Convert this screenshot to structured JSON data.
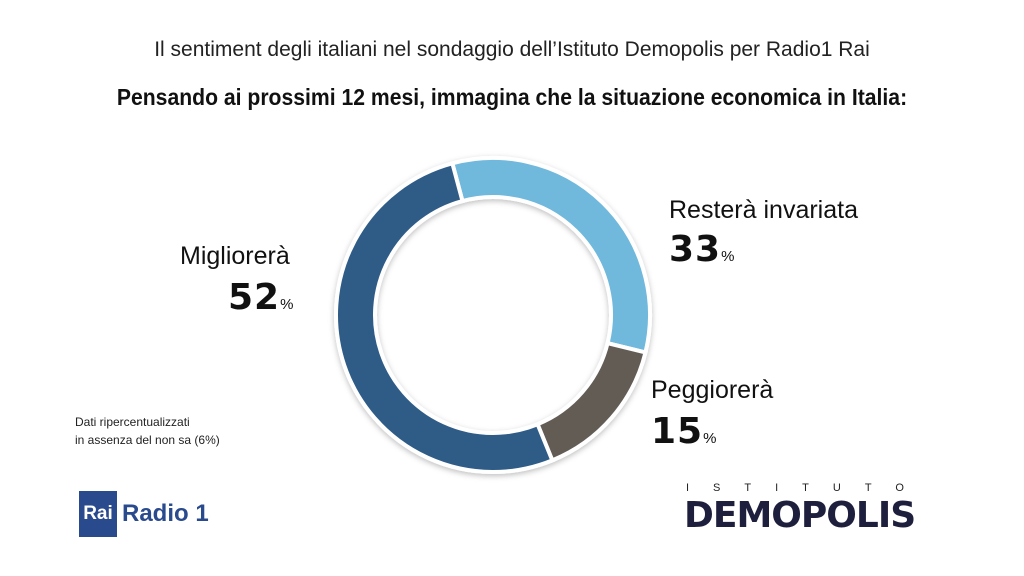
{
  "header": {
    "subtitle": "Il sentiment degli italiani nel sondaggio dell’Istituto Demopolis per Radio1 Rai",
    "title": "Pensando ai prossimi 12 mesi, immagina che la situazione economica in Italia:"
  },
  "chart_data": {
    "type": "pie",
    "variant": "donut",
    "title": "Pensando ai prossimi 12 mesi, immagina che la situazione economica in Italia:",
    "categories": [
      "Resterà invariata",
      "Peggiorerà",
      "Migliorerà"
    ],
    "values": [
      33,
      15,
      52
    ],
    "unit": "%",
    "colors": [
      "#6fb8dc",
      "#625b55",
      "#2f5b87"
    ]
  },
  "labels": {
    "percent_sign": "%"
  },
  "note": {
    "line1": "Dati ripercentualizzati",
    "line2": "in assenza del non sa (6%)"
  },
  "logos": {
    "rai": "Rai",
    "radio": "Radio 1",
    "istituto": "ISTITUTO",
    "demopolis": "DEMOPOLIS"
  }
}
